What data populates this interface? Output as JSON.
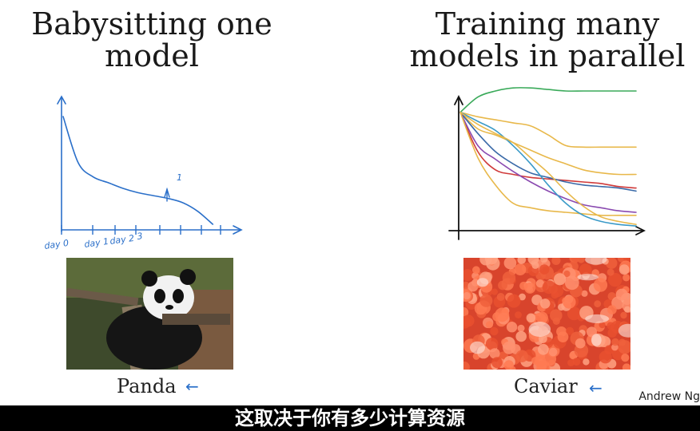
{
  "slide": {
    "left_title": "Babysitting one model",
    "right_title": "Training many models in parallel",
    "left_caption": "Panda",
    "right_caption": "Caviar",
    "left_arrow_glyph": "←",
    "right_arrow_glyph": "←",
    "author_watermark": "Andrew Ng",
    "subtitle": "这取决于你有多少计算资源"
  },
  "left_sketch": {
    "tick_labels": [
      "day 0",
      "day 1",
      "day 2",
      "3"
    ],
    "annotation": "1",
    "ink_color": "#2a6fc9"
  },
  "chart_data": [
    {
      "type": "line",
      "title": "",
      "xlabel": "",
      "ylabel": "",
      "x": [
        0,
        1,
        2,
        3,
        4,
        5,
        6,
        7,
        8,
        9,
        10
      ],
      "series": [
        {
          "values": [
            8.0,
            4.8,
            3.8,
            3.4,
            3.0,
            2.7,
            2.5,
            2.3,
            2.0,
            1.4,
            0.5
          ]
        }
      ],
      "xlim": [
        0,
        11
      ],
      "ylim": [
        0,
        10
      ],
      "grid": false,
      "legend": "none"
    },
    {
      "type": "line",
      "title": "",
      "xlabel": "",
      "ylabel": "",
      "x": [
        0,
        1,
        2,
        3,
        4,
        5,
        6,
        7,
        8,
        9,
        10
      ],
      "series": [
        {
          "color": "#3aaa5a",
          "values": [
            7.6,
            8.6,
            9.0,
            9.2,
            9.2,
            9.1,
            9.0,
            9.0,
            9.0,
            9.0,
            9.0
          ]
        },
        {
          "color": "#e8b84a",
          "values": [
            7.6,
            7.3,
            7.1,
            6.9,
            6.7,
            6.1,
            5.4,
            5.3,
            5.3,
            5.3,
            5.3
          ]
        },
        {
          "color": "#e8b84a",
          "values": [
            7.6,
            6.5,
            6.1,
            5.6,
            5.1,
            4.6,
            4.2,
            3.8,
            3.6,
            3.5,
            3.5
          ]
        },
        {
          "color": "#d03a3a",
          "values": [
            7.6,
            5.0,
            3.8,
            3.5,
            3.3,
            3.2,
            3.1,
            3.0,
            2.9,
            2.7,
            2.6
          ]
        },
        {
          "color": "#3a6aa8",
          "values": [
            7.6,
            6.2,
            5.0,
            4.2,
            3.6,
            3.3,
            3.0,
            2.8,
            2.7,
            2.6,
            2.4
          ]
        },
        {
          "color": "#8a4ab0",
          "values": [
            7.6,
            5.4,
            4.5,
            3.7,
            3.0,
            2.4,
            1.9,
            1.5,
            1.3,
            1.1,
            1.0
          ]
        },
        {
          "color": "#e8b84a",
          "values": [
            7.6,
            4.6,
            2.8,
            1.6,
            1.3,
            1.1,
            1.0,
            0.9,
            0.8,
            0.8,
            0.8
          ]
        },
        {
          "color": "#3a9ac8",
          "values": [
            7.6,
            7.0,
            6.4,
            5.4,
            4.2,
            2.8,
            1.6,
            0.8,
            0.4,
            0.2,
            0.1
          ]
        },
        {
          "color": "#e8b84a",
          "values": [
            7.6,
            6.8,
            6.2,
            5.6,
            4.6,
            3.6,
            2.4,
            1.4,
            0.7,
            0.4,
            0.2
          ]
        }
      ],
      "xlim": [
        0,
        11
      ],
      "ylim": [
        0,
        10
      ],
      "grid": false,
      "legend": "none"
    }
  ]
}
